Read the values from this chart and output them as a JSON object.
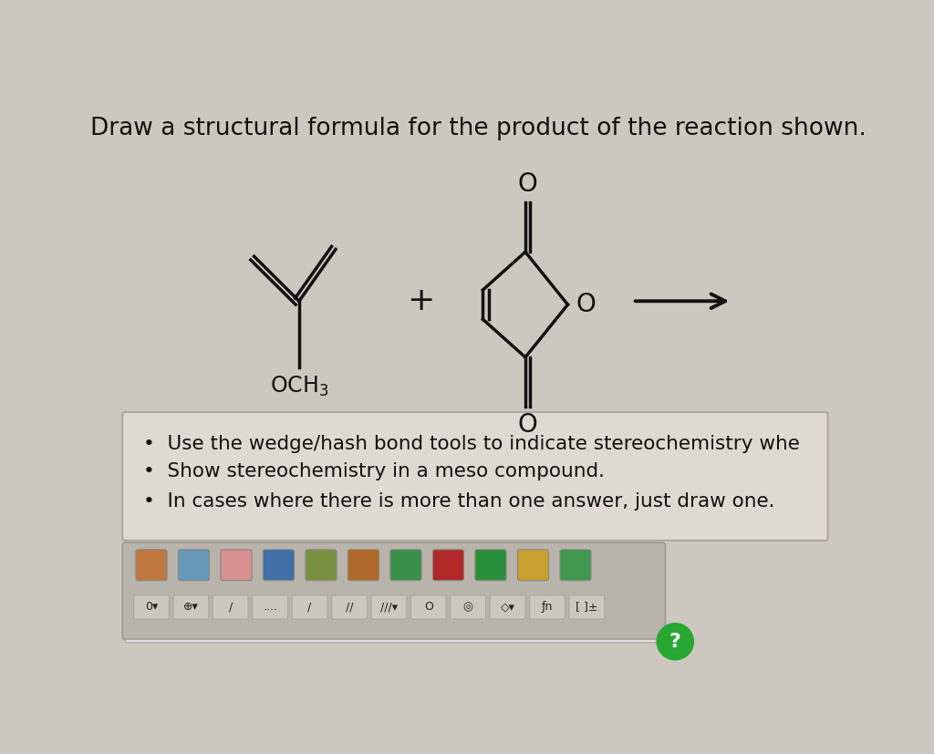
{
  "title": "Draw a structural formula for the product of the reaction shown.",
  "title_fontsize": 19,
  "background_color": "#cdc8bf",
  "instructions": [
    "Use the wedge/hash bond tools to indicate stereochemistry whe",
    "Show stereochemistry in a meso compound.",
    "In cases where there is more than one answer, just draw one."
  ],
  "instruction_box_color": "#dedad2",
  "line_color": "#111111",
  "text_color": "#111111",
  "toolbar_bg": "#b8b4ac",
  "draw_area_bg": "#f0eeea",
  "question_green": "#28a832"
}
